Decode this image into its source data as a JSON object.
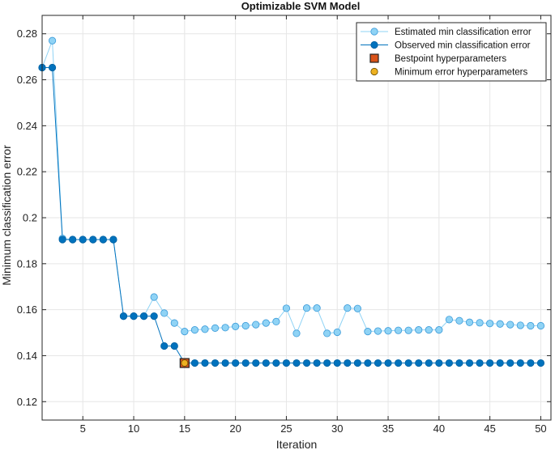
{
  "chart_data": {
    "type": "line",
    "title": "Optimizable SVM Model",
    "xlabel": "Iteration",
    "ylabel": "Minimum classification error",
    "xlim": [
      1,
      51
    ],
    "ylim": [
      0.112,
      0.288
    ],
    "xticks": [
      5,
      10,
      15,
      20,
      25,
      30,
      35,
      40,
      45,
      50
    ],
    "yticks": [
      0.12,
      0.14,
      0.16,
      0.18,
      0.2,
      0.22,
      0.24,
      0.26,
      0.28
    ],
    "xtick_labels": [
      "5",
      "10",
      "15",
      "20",
      "25",
      "30",
      "35",
      "40",
      "45",
      "50"
    ],
    "ytick_labels": [
      "0.12",
      "0.14",
      "0.16",
      "0.18",
      "0.2",
      "0.22",
      "0.24",
      "0.26",
      "0.28"
    ],
    "grid": true,
    "legend_position": "top-right",
    "series": [
      {
        "name": "Estimated min classification error",
        "color": "#8fd3f5",
        "edge": "#3a9ad9",
        "x": [
          1,
          2,
          3,
          4,
          5,
          6,
          7,
          8,
          9,
          10,
          11,
          12,
          13,
          14,
          15,
          16,
          17,
          18,
          19,
          20,
          21,
          22,
          23,
          24,
          25,
          26,
          27,
          28,
          29,
          30,
          31,
          32,
          33,
          34,
          35,
          36,
          37,
          38,
          39,
          40,
          41,
          42,
          43,
          44,
          45,
          46,
          47,
          48,
          49,
          50
        ],
        "values": [
          0.2653,
          0.277,
          0.191,
          0.1905,
          0.1905,
          0.1905,
          0.1905,
          0.1905,
          0.1572,
          0.1572,
          0.1572,
          0.1655,
          0.1585,
          0.1542,
          0.1505,
          0.1512,
          0.1515,
          0.152,
          0.1522,
          0.1527,
          0.153,
          0.1535,
          0.1542,
          0.1548,
          0.1606,
          0.1497,
          0.1607,
          0.1607,
          0.1497,
          0.1502,
          0.1607,
          0.1605,
          0.1505,
          0.1507,
          0.1508,
          0.151,
          0.151,
          0.1512,
          0.1512,
          0.1512,
          0.1557,
          0.1552,
          0.1545,
          0.1543,
          0.154,
          0.1538,
          0.1535,
          0.1532,
          0.153,
          0.153
        ]
      },
      {
        "name": "Observed min classification error",
        "color": "#0072bd",
        "edge": "#0060a0",
        "x": [
          1,
          2,
          3,
          4,
          5,
          6,
          7,
          8,
          9,
          10,
          11,
          12,
          13,
          14,
          15,
          16,
          17,
          18,
          19,
          20,
          21,
          22,
          23,
          24,
          25,
          26,
          27,
          28,
          29,
          30,
          31,
          32,
          33,
          34,
          35,
          36,
          37,
          38,
          39,
          40,
          41,
          42,
          43,
          44,
          45,
          46,
          47,
          48,
          49,
          50
        ],
        "values": [
          0.2653,
          0.2653,
          0.1905,
          0.1905,
          0.1905,
          0.1905,
          0.1905,
          0.1905,
          0.1572,
          0.1572,
          0.1572,
          0.1572,
          0.1442,
          0.1442,
          0.1368,
          0.1368,
          0.1368,
          0.1368,
          0.1368,
          0.1368,
          0.1368,
          0.1368,
          0.1368,
          0.1368,
          0.1368,
          0.1368,
          0.1368,
          0.1368,
          0.1368,
          0.1368,
          0.1368,
          0.1368,
          0.1368,
          0.1368,
          0.1368,
          0.1368,
          0.1368,
          0.1368,
          0.1368,
          0.1368,
          0.1368,
          0.1368,
          0.1368,
          0.1368,
          0.1368,
          0.1368,
          0.1368,
          0.1368,
          0.1368,
          0.1368
        ]
      }
    ],
    "markers": [
      {
        "name": "Bestpoint hyperparameters",
        "shape": "square",
        "color": "#d95319",
        "x": 15,
        "y": 0.1368
      },
      {
        "name": "Minimum error hyperparameters",
        "shape": "circle",
        "color": "#edb120",
        "x": 15,
        "y": 0.1368
      }
    ]
  }
}
